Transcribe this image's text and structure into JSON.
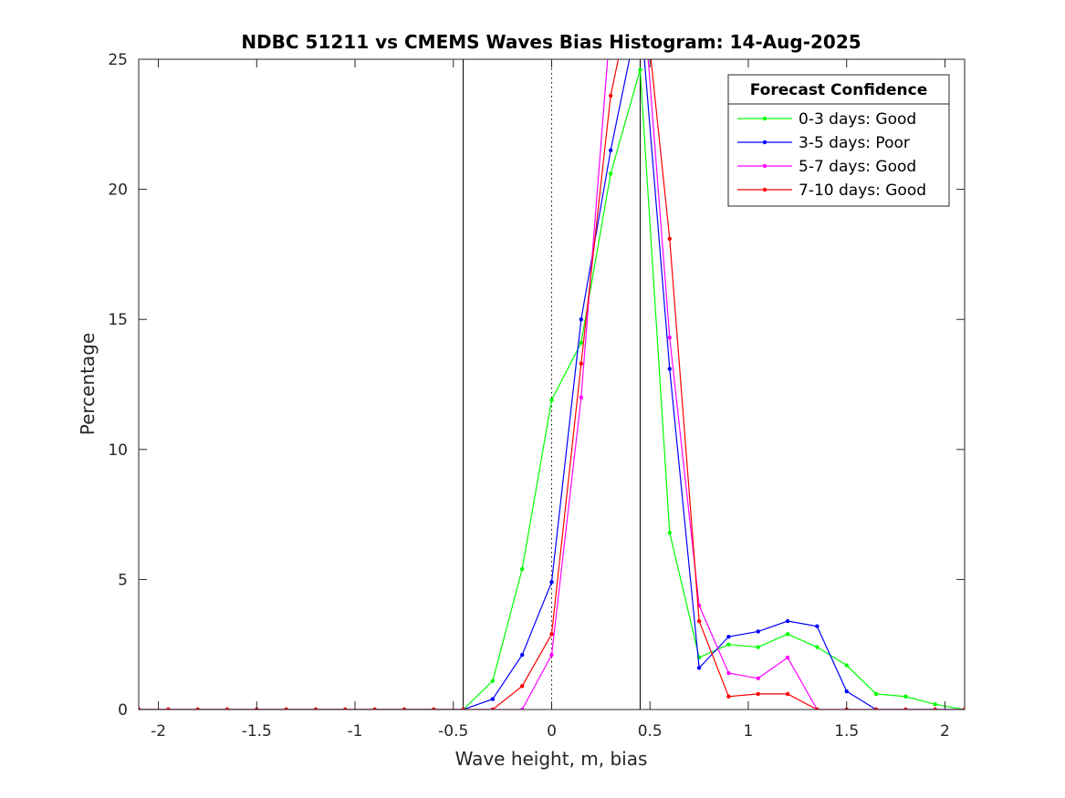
{
  "chart_data": {
    "type": "line",
    "title": "NDBC 51211 vs CMEMS Waves Bias Histogram: 14-Aug-2025",
    "xlabel": "Wave height, m, bias",
    "ylabel": "Percentage",
    "xlim": [
      -2.1,
      2.1
    ],
    "ylim": [
      0,
      25
    ],
    "xticks": [
      -2,
      -1.5,
      -1,
      -0.5,
      0,
      0.5,
      1,
      1.5,
      2
    ],
    "xtick_labels": [
      "-2",
      "-1.5",
      "-1",
      "-0.5",
      "0",
      "0.5",
      "1",
      "1.5",
      "2"
    ],
    "yticks": [
      0,
      5,
      10,
      15,
      20,
      25
    ],
    "ytick_labels": [
      "0",
      "5",
      "10",
      "15",
      "20",
      "25"
    ],
    "grid": false,
    "vertical_lines": [
      {
        "x": -0.45,
        "style": "solid"
      },
      {
        "x": 0,
        "style": "dotted"
      },
      {
        "x": 0.45,
        "style": "solid"
      }
    ],
    "legend": {
      "title": "Forecast Confidence",
      "placement": "top-right"
    },
    "x": [
      -2.1,
      -1.95,
      -1.8,
      -1.65,
      -1.5,
      -1.35,
      -1.2,
      -1.05,
      -0.9,
      -0.75,
      -0.6,
      -0.45,
      -0.3,
      -0.15,
      0,
      0.15,
      0.3,
      0.45,
      0.6,
      0.75,
      0.9,
      1.05,
      1.2,
      1.35,
      1.5,
      1.65,
      1.8,
      1.95,
      2.1
    ],
    "series": [
      {
        "name": "0-3 days: Good",
        "color": "#00ff00",
        "values": [
          0,
          0,
          0,
          0,
          0,
          0,
          0,
          0,
          0,
          0,
          0,
          0,
          1.1,
          5.4,
          11.9,
          14.1,
          20.6,
          24.6,
          6.8,
          2.0,
          2.5,
          2.4,
          2.9,
          2.4,
          1.7,
          0.6,
          0.5,
          0.2,
          0
        ]
      },
      {
        "name": "3-5 days: Poor",
        "color": "#0000ff",
        "values": [
          0,
          0,
          0,
          0,
          0,
          0,
          0,
          0,
          0,
          0,
          0,
          0,
          0.4,
          2.1,
          4.9,
          15.0,
          21.5,
          27.0,
          13.1,
          1.6,
          2.8,
          3.0,
          3.4,
          3.2,
          0.7,
          0,
          0,
          0,
          0
        ]
      },
      {
        "name": "5-7 days: Good",
        "color": "#ff00ff",
        "values": [
          0,
          0,
          0,
          0,
          0,
          0,
          0,
          0,
          0,
          0,
          0,
          0,
          0,
          0,
          2.1,
          12.0,
          26.5,
          29.0,
          14.3,
          4.0,
          1.4,
          1.2,
          2.0,
          0,
          0,
          0,
          0,
          0,
          0
        ]
      },
      {
        "name": "7-10 days: Good",
        "color": "#ff0000",
        "values": [
          0,
          0,
          0,
          0,
          0,
          0,
          0,
          0,
          0,
          0,
          0,
          0,
          0,
          0.9,
          2.9,
          13.3,
          23.6,
          29.0,
          18.1,
          3.4,
          0.5,
          0.6,
          0.6,
          0,
          0,
          0,
          0,
          0,
          0
        ]
      }
    ]
  }
}
